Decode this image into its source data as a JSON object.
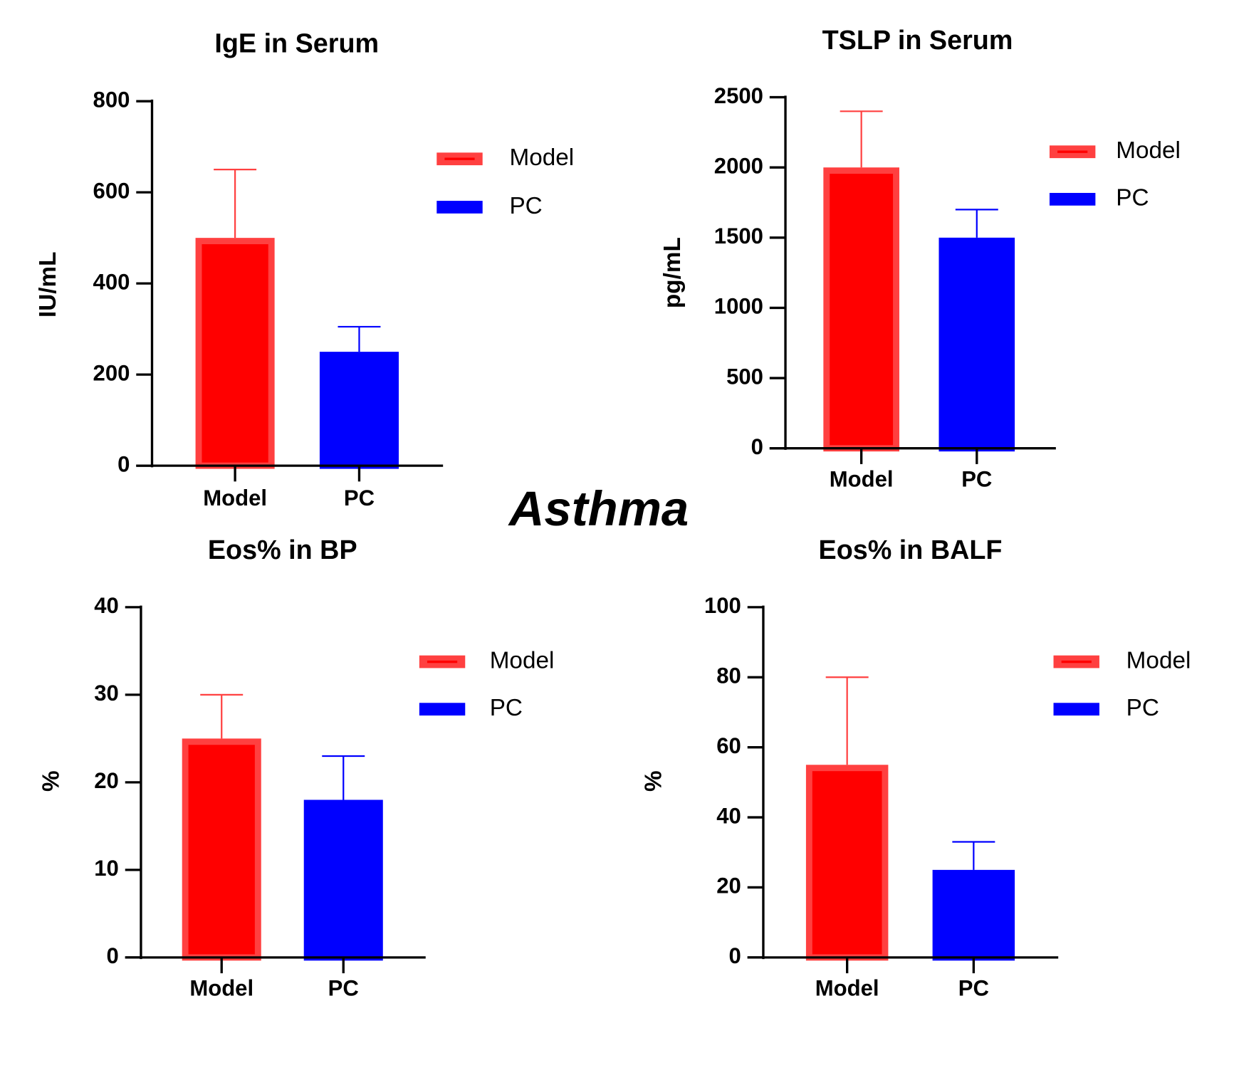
{
  "title": "Asthma",
  "chart_data": [
    {
      "type": "bar",
      "title": "IgE in Serum",
      "y_label": "IU/mL",
      "categories": [
        "Model",
        "PC"
      ],
      "values": [
        500,
        250
      ],
      "errors": [
        150,
        55
      ],
      "colors": [
        "#ff0000",
        "#0000ff"
      ],
      "ylim": [
        0,
        800
      ],
      "yticks": [
        0,
        200,
        400,
        600,
        800
      ],
      "legend": "upper right"
    },
    {
      "type": "bar",
      "title": "TSLP in Serum",
      "y_label": "pg/mL",
      "categories": [
        "Model",
        "PC"
      ],
      "values": [
        2000,
        1500
      ],
      "errors": [
        400,
        200
      ],
      "colors": [
        "#ff0000",
        "#0000ff"
      ],
      "ylim": [
        0,
        2500
      ],
      "yticks": [
        0,
        500,
        1000,
        1500,
        2000,
        2500
      ],
      "legend": "upper right"
    },
    {
      "type": "bar",
      "title": "Eos% in BP",
      "y_label": "%",
      "categories": [
        "Model",
        "PC"
      ],
      "values": [
        25,
        18
      ],
      "errors": [
        5,
        5
      ],
      "colors": [
        "#ff0000",
        "#0000ff"
      ],
      "ylim": [
        0,
        40
      ],
      "yticks": [
        0,
        10,
        20,
        30,
        40
      ],
      "legend": "upper right"
    },
    {
      "type": "bar",
      "title": "Eos% in BALF",
      "y_label": "%",
      "categories": [
        "Model",
        "PC"
      ],
      "values": [
        55,
        25
      ],
      "errors": [
        25,
        8
      ],
      "colors": [
        "#ff0000",
        "#0000ff"
      ],
      "ylim": [
        0,
        100
      ],
      "yticks": [
        0,
        20,
        40,
        60,
        80,
        100
      ],
      "legend": "upper right"
    }
  ]
}
